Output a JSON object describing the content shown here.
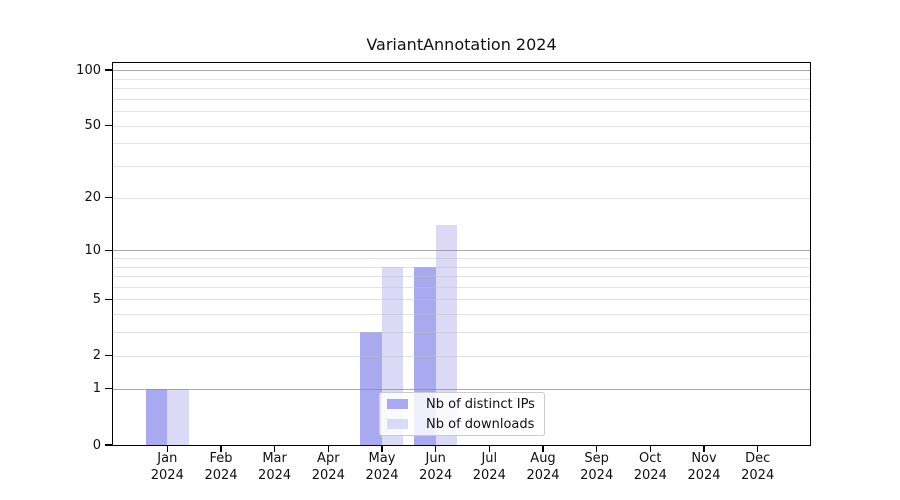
{
  "chart_data": {
    "type": "bar",
    "title": "VariantAnnotation 2024",
    "xlabel": "",
    "ylabel": "",
    "year": "2024",
    "categories": [
      "Jan",
      "Feb",
      "Mar",
      "Apr",
      "May",
      "Jun",
      "Jul",
      "Aug",
      "Sep",
      "Oct",
      "Nov",
      "Dec"
    ],
    "series": [
      {
        "name": "Nb of distinct IPs",
        "color": "#a9a9ef",
        "values": [
          1,
          0,
          0,
          0,
          3,
          8,
          0,
          0,
          0,
          0,
          0,
          0
        ]
      },
      {
        "name": "Nb of downloads",
        "color": "#dadaf7",
        "values": [
          1,
          0,
          0,
          0,
          8,
          14,
          0,
          0,
          0,
          0,
          0,
          0
        ]
      }
    ],
    "y_axis": {
      "scale": "log10(1+value)",
      "tick_values": [
        100,
        50,
        20,
        10,
        5,
        2,
        1,
        0
      ],
      "major_gridlines": [
        1,
        10,
        100
      ],
      "minor_gridlines": [
        2,
        3,
        4,
        5,
        6,
        7,
        8,
        9,
        20,
        30,
        40,
        50,
        60,
        70,
        80,
        90
      ],
      "ylim": [
        0,
        109
      ]
    },
    "legend": {
      "position": "lower center",
      "items": [
        "Nb of distinct IPs",
        "Nb of downloads"
      ]
    },
    "grid": true
  },
  "colors": {
    "axis": "#000000",
    "minor_grid": "#e7e7e7",
    "major_grid": "#aaaaaa",
    "text": "#111111",
    "legend_border": "#cccccc",
    "background": "#ffffff"
  }
}
